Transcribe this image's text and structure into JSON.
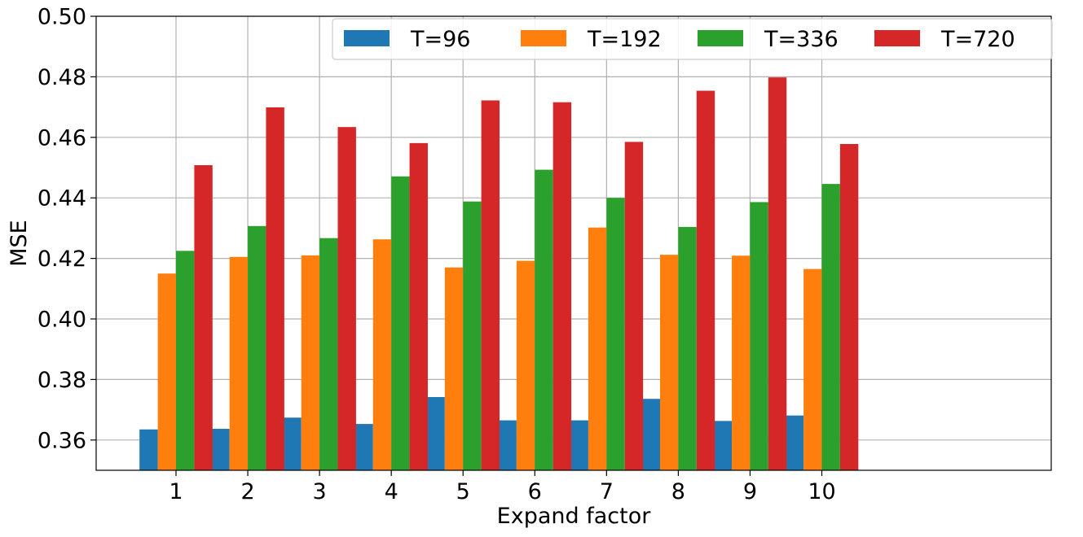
{
  "chart_data": {
    "type": "bar",
    "title": "",
    "xlabel": "Expand factor",
    "ylabel": "MSE",
    "ylim": [
      0.35,
      0.5
    ],
    "yticks": [
      "0.36",
      "0.38",
      "0.40",
      "0.42",
      "0.44",
      "0.46",
      "0.48",
      "0.50"
    ],
    "ytick_values": [
      0.36,
      0.38,
      0.4,
      0.42,
      0.44,
      0.46,
      0.48,
      0.5
    ],
    "categories": [
      "1",
      "2",
      "3",
      "4",
      "5",
      "6",
      "7",
      "8",
      "9",
      "10"
    ],
    "grid": true,
    "legend_position": "top-right",
    "series": [
      {
        "name": "T=96",
        "color": "#1f77b4",
        "values": [
          0.3635,
          0.3637,
          0.3674,
          0.3653,
          0.3742,
          0.3665,
          0.3665,
          0.3736,
          0.3663,
          0.3681
        ]
      },
      {
        "name": "T=192",
        "color": "#ff7f0e",
        "values": [
          0.415,
          0.4205,
          0.421,
          0.4263,
          0.417,
          0.4192,
          0.4302,
          0.4212,
          0.4209,
          0.4165
        ]
      },
      {
        "name": "T=336",
        "color": "#2ca02c",
        "values": [
          0.4225,
          0.4307,
          0.4267,
          0.4471,
          0.4388,
          0.4493,
          0.44,
          0.4304,
          0.4386,
          0.4446
        ]
      },
      {
        "name": "T=720",
        "color": "#d62728",
        "values": [
          0.4508,
          0.4699,
          0.4634,
          0.4581,
          0.4722,
          0.4716,
          0.4585,
          0.4754,
          0.4798,
          0.4578
        ]
      }
    ]
  }
}
